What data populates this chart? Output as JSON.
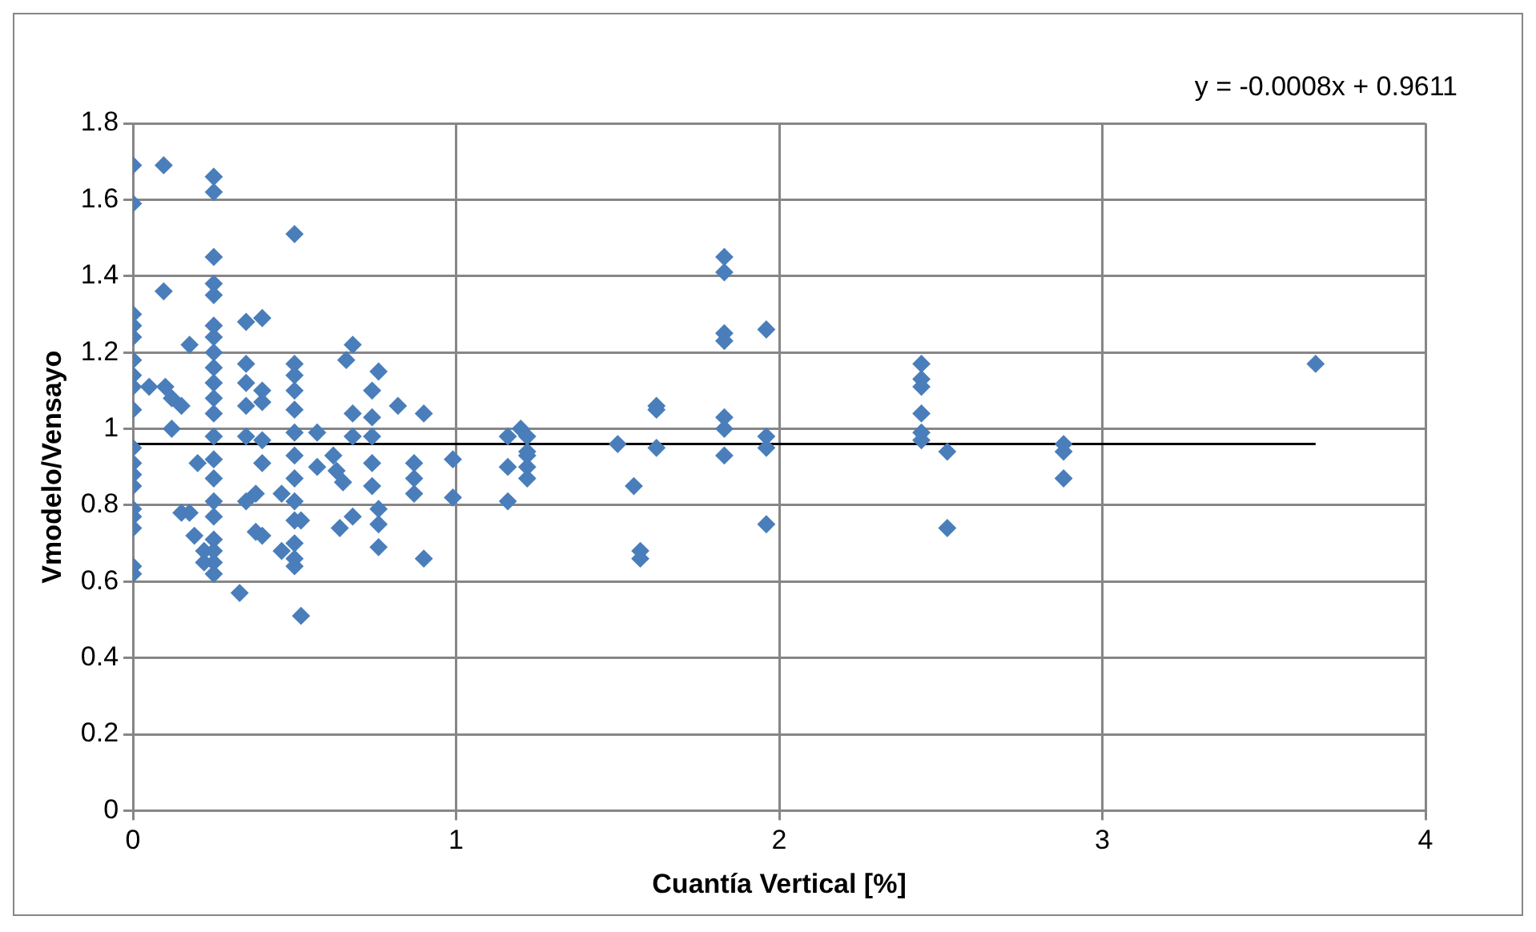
{
  "chart_data": {
    "type": "scatter",
    "xlabel": "Cuantía Vertical [%]",
    "ylabel": "Vmodelo/Vensayo",
    "annotations": [
      "y = -0.0008x + 0.9611"
    ],
    "xlim": [
      0,
      4
    ],
    "xticks": [
      0,
      1,
      2,
      3,
      4
    ],
    "ylim": [
      0,
      1.8
    ],
    "yticks": [
      0,
      0.2,
      0.4,
      0.6,
      0.8,
      1,
      1.2,
      1.4,
      1.6,
      1.8
    ],
    "grid": true,
    "legend": false,
    "series": [
      {
        "color": "#4a7ebb",
        "marker": "diamond",
        "x": [
          0,
          0,
          0,
          0,
          0,
          0,
          0,
          0,
          0,
          0,
          0,
          0,
          0,
          0,
          0,
          0,
          0,
          0,
          0.05,
          0.095,
          0.095,
          0.1,
          0.12,
          0.15,
          0.12,
          0.15,
          0.175,
          0.175,
          0.19,
          0.2,
          0.22,
          0.22,
          0.25,
          0.25,
          0.25,
          0.25,
          0.25,
          0.25,
          0.25,
          0.25,
          0.25,
          0.25,
          0.25,
          0.25,
          0.25,
          0.25,
          0.25,
          0.25,
          0.25,
          0.25,
          0.25,
          0.25,
          0.25,
          0.33,
          0.35,
          0.35,
          0.35,
          0.35,
          0.35,
          0.35,
          0.4,
          0.4,
          0.4,
          0.4,
          0.4,
          0.4,
          0.38,
          0.38,
          0.5,
          0.5,
          0.5,
          0.5,
          0.5,
          0.5,
          0.5,
          0.5,
          0.5,
          0.5,
          0.5,
          0.5,
          0.5,
          0.52,
          0.52,
          0.46,
          0.46,
          0.57,
          0.57,
          0.62,
          0.63,
          0.65,
          0.64,
          0.66,
          0.68,
          0.68,
          0.68,
          0.68,
          0.76,
          0.74,
          0.74,
          0.74,
          0.74,
          0.74,
          0.76,
          0.76,
          0.76,
          0.82,
          0.87,
          0.87,
          0.87,
          0.9,
          0.9,
          0.99,
          0.99,
          1.16,
          1.16,
          1.16,
          1.2,
          1.22,
          1.22,
          1.22,
          1.22,
          1.22,
          1.5,
          1.55,
          1.57,
          1.57,
          1.62,
          1.62,
          1.62,
          1.83,
          1.83,
          1.83,
          1.83,
          1.83,
          1.83,
          1.83,
          1.96,
          1.96,
          1.96,
          1.96,
          2.44,
          2.44,
          2.44,
          2.44,
          2.44,
          2.44,
          2.52,
          2.52,
          2.88,
          2.88,
          2.88,
          3.66
        ],
        "values": [
          1.69,
          1.59,
          1.3,
          1.27,
          1.24,
          1.18,
          1.14,
          1.11,
          1.05,
          0.95,
          0.91,
          0.88,
          0.85,
          0.79,
          0.77,
          0.74,
          0.64,
          0.62,
          1.11,
          1.69,
          1.36,
          1.11,
          1.08,
          1.06,
          1.0,
          0.78,
          1.22,
          0.78,
          0.72,
          0.91,
          0.68,
          0.65,
          1.66,
          1.62,
          1.45,
          1.38,
          1.35,
          1.27,
          1.24,
          1.2,
          1.16,
          1.12,
          1.08,
          1.04,
          0.98,
          0.92,
          0.87,
          0.81,
          0.77,
          0.71,
          0.68,
          0.65,
          0.62,
          0.57,
          1.28,
          1.17,
          1.12,
          1.06,
          0.98,
          0.81,
          1.29,
          1.1,
          1.07,
          0.97,
          0.91,
          0.72,
          0.83,
          0.73,
          1.51,
          1.17,
          1.14,
          1.1,
          1.05,
          0.99,
          0.93,
          0.87,
          0.81,
          0.76,
          0.7,
          0.66,
          0.64,
          0.51,
          0.76,
          0.68,
          0.83,
          0.99,
          0.9,
          0.93,
          0.89,
          0.86,
          0.74,
          1.18,
          1.22,
          1.04,
          0.98,
          0.77,
          1.15,
          1.1,
          1.03,
          0.98,
          0.91,
          0.85,
          0.79,
          0.75,
          0.69,
          1.06,
          0.91,
          0.87,
          0.83,
          0.66,
          1.04,
          0.92,
          0.82,
          0.98,
          0.9,
          0.81,
          1.0,
          0.98,
          0.94,
          0.93,
          0.9,
          0.87,
          0.96,
          0.85,
          0.68,
          0.66,
          1.06,
          1.05,
          0.95,
          1.45,
          1.41,
          1.25,
          1.23,
          1.03,
          1.0,
          0.93,
          1.26,
          0.98,
          0.95,
          0.75,
          1.17,
          1.13,
          1.11,
          1.04,
          0.99,
          0.97,
          0.94,
          0.74,
          0.96,
          0.94,
          0.87,
          1.17
        ]
      },
      {
        "type": "line",
        "color": "#000000",
        "marker": "none",
        "x": [
          0,
          3.66
        ],
        "values": [
          0.96,
          0.96
        ]
      }
    ]
  }
}
